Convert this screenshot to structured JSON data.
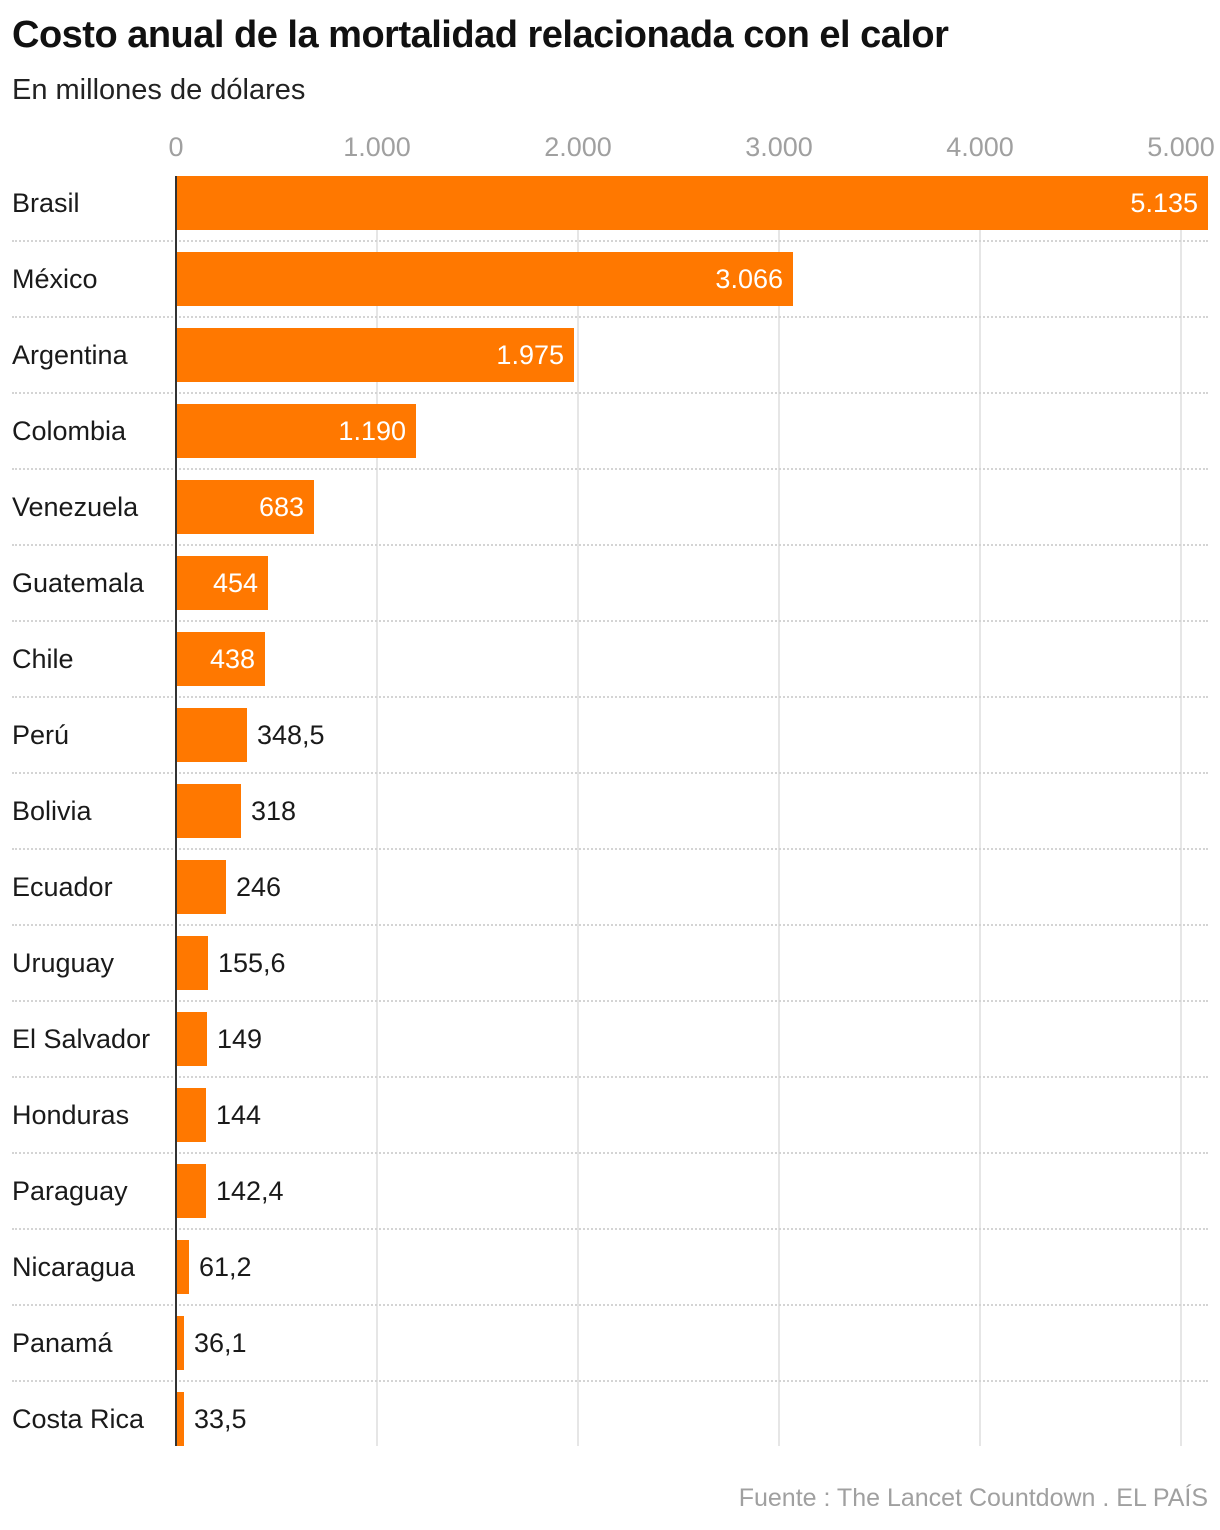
{
  "header": {
    "title": "Costo anual de la mortalidad relacionada con el calor",
    "subtitle": "En millones de dólares"
  },
  "axis": {
    "ticks": [
      "0",
      "1.000",
      "2.000",
      "3.000",
      "4.000",
      "5.000"
    ]
  },
  "rows": [
    {
      "label": "Brasil",
      "value_label": "5.135"
    },
    {
      "label": "México",
      "value_label": "3.066"
    },
    {
      "label": "Argentina",
      "value_label": "1.975"
    },
    {
      "label": "Colombia",
      "value_label": "1.190"
    },
    {
      "label": "Venezuela",
      "value_label": "683"
    },
    {
      "label": "Guatemala",
      "value_label": "454"
    },
    {
      "label": "Chile",
      "value_label": "438"
    },
    {
      "label": "Perú",
      "value_label": "348,5"
    },
    {
      "label": "Bolivia",
      "value_label": "318"
    },
    {
      "label": "Ecuador",
      "value_label": "246"
    },
    {
      "label": "Uruguay",
      "value_label": "155,6"
    },
    {
      "label": "El Salvador",
      "value_label": "149"
    },
    {
      "label": "Honduras",
      "value_label": "144"
    },
    {
      "label": "Paraguay",
      "value_label": "142,4"
    },
    {
      "label": "Nicaragua",
      "value_label": "61,2"
    },
    {
      "label": "Panamá",
      "value_label": "36,1"
    },
    {
      "label": "Costa Rica",
      "value_label": "33,5"
    }
  ],
  "footer": {
    "source": "Fuente : The Lancet Countdown . EL PAÍS"
  },
  "colors": {
    "bar": "#ff7800",
    "grid": "#e6e6e6",
    "tick_text": "#a0a0a0"
  },
  "chart_data": {
    "type": "bar",
    "orientation": "horizontal",
    "title": "Costo anual de la mortalidad relacionada con el calor",
    "subtitle": "En millones de dólares",
    "xlabel": "",
    "ylabel": "",
    "categories": [
      "Brasil",
      "México",
      "Argentina",
      "Colombia",
      "Venezuela",
      "Guatemala",
      "Chile",
      "Perú",
      "Bolivia",
      "Ecuador",
      "Uruguay",
      "El Salvador",
      "Honduras",
      "Paraguay",
      "Nicaragua",
      "Panamá",
      "Costa Rica"
    ],
    "values": [
      5135,
      3066,
      1975,
      1190,
      683,
      454,
      438,
      348.5,
      318,
      246,
      155.6,
      149,
      144,
      142.4,
      61.2,
      36.1,
      33.5
    ],
    "xlim": [
      0,
      5135
    ],
    "x_ticks": [
      0,
      1000,
      2000,
      3000,
      4000,
      5000
    ],
    "grid": true,
    "legend": null,
    "source": "Fuente : The Lancet Countdown . EL PAÍS"
  }
}
